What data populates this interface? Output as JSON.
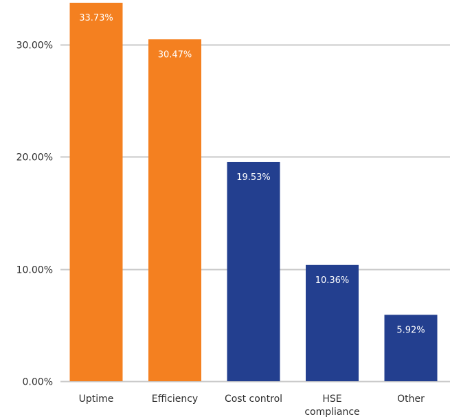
{
  "chart_data": {
    "type": "bar",
    "categories": [
      "Uptime",
      "Efficiency",
      "Cost control",
      "HSE compliance",
      "Other"
    ],
    "category_lines": [
      [
        "Uptime"
      ],
      [
        "Efficiency"
      ],
      [
        "Cost control"
      ],
      [
        "HSE",
        "compliance"
      ],
      [
        "Other"
      ]
    ],
    "values": [
      33.73,
      30.47,
      19.53,
      10.36,
      5.92
    ],
    "value_labels": [
      "33.73%",
      "30.47%",
      "19.53%",
      "10.36%",
      "5.92%"
    ],
    "y_ticks": [
      0,
      10,
      20,
      30
    ],
    "y_tick_labels": [
      "0.00%",
      "10.00%",
      "20.00%",
      "30.00%"
    ],
    "ylim": [
      0,
      33.73
    ],
    "grid": true,
    "colors": [
      "#f48020",
      "#f48020",
      "#233f8f",
      "#233f8f",
      "#233f8f"
    ],
    "gridline_color": "#c8c8c8",
    "text_color": "#2d2d2d",
    "value_label_color": "#ffffff",
    "title": "",
    "xlabel": "",
    "ylabel": ""
  }
}
